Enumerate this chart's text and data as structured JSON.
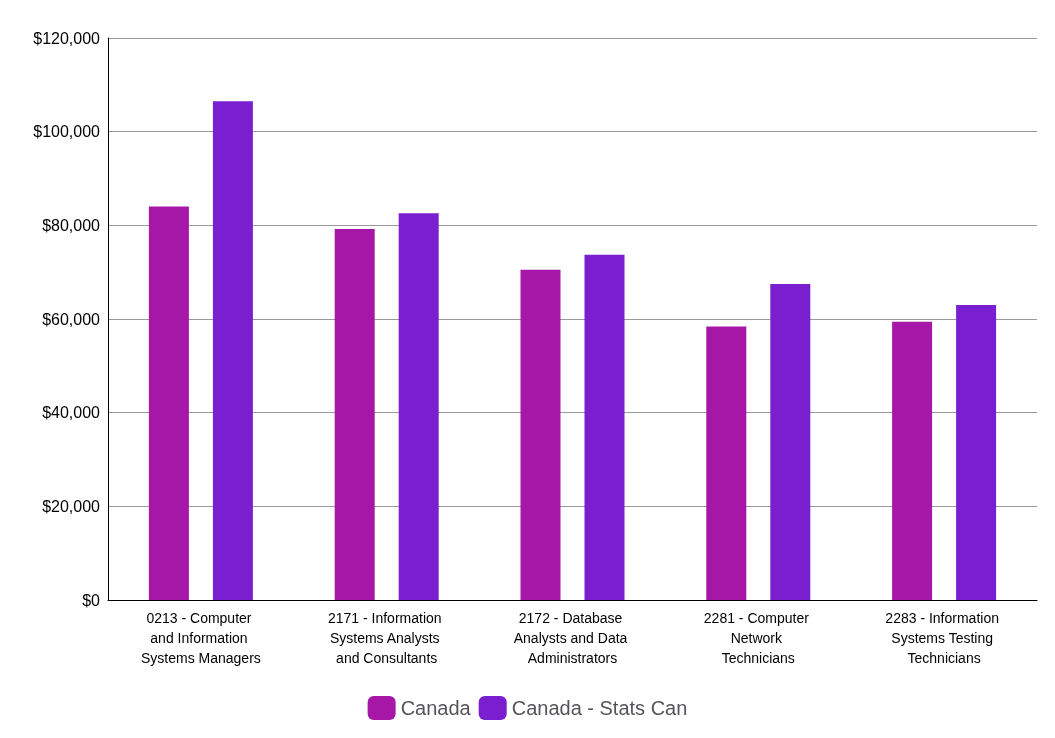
{
  "chart_data": {
    "type": "bar",
    "categories": [
      "0213 - Computer and Information Systems Managers",
      "2171 - Information Systems Analysts and Consultants",
      "2172 - Database Analysts and Data Administrators",
      "2281 - Computer Network Technicians",
      "2283 - Information Systems Testing Technicians"
    ],
    "series": [
      {
        "name": "Canada",
        "color": "#a717a7",
        "values": [
          84000,
          79200,
          70500,
          58400,
          59400
        ]
      },
      {
        "name": "Canada - Stats Can",
        "color": "#7a1fcf",
        "values": [
          106500,
          82600,
          73700,
          67500,
          63000
        ]
      }
    ],
    "ylim": [
      0,
      120000
    ],
    "yticks": [
      {
        "value": 0,
        "label": "$0"
      },
      {
        "value": 20000,
        "label": "$20,000"
      },
      {
        "value": 40000,
        "label": "$40,000"
      },
      {
        "value": 60000,
        "label": "$60,000"
      },
      {
        "value": 80000,
        "label": "$80,000"
      },
      {
        "value": 100000,
        "label": "$100,000"
      },
      {
        "value": 120000,
        "label": "$120,000"
      }
    ],
    "grid": "y",
    "legend": "bottom"
  }
}
